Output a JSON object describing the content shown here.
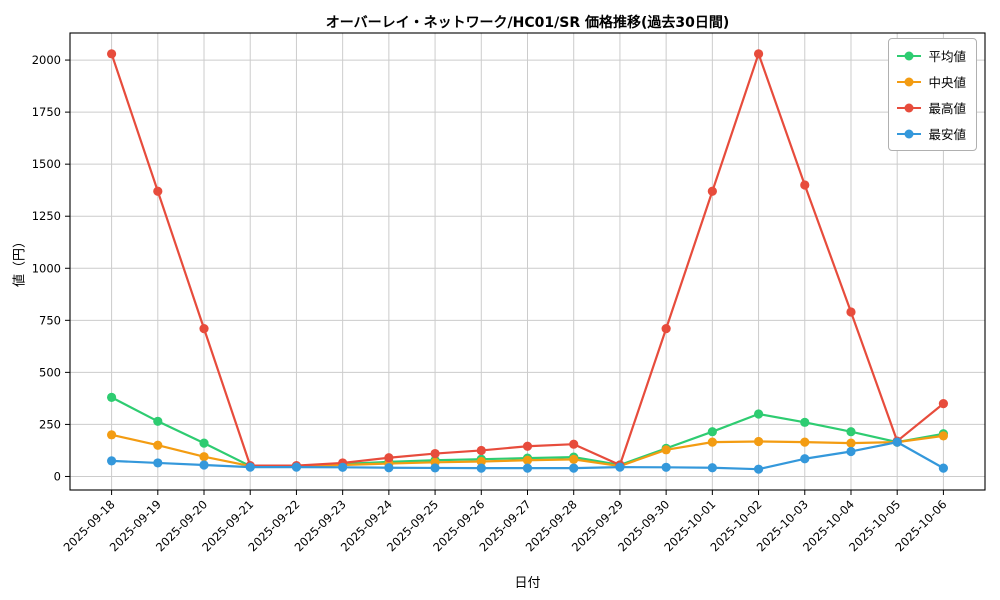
{
  "chart_data": {
    "type": "line",
    "title": "オーバーレイ・ネットワーク/HC01/SR 価格推移(過去30日間)",
    "xlabel": "日付",
    "ylabel": "値（円）",
    "grid": true,
    "legend_position": "upper right",
    "ylim": [
      -65,
      2130
    ],
    "yticks": [
      0,
      250,
      500,
      750,
      1000,
      1250,
      1500,
      1750,
      2000
    ],
    "x_margin": 0.9,
    "categories": [
      "2025-09-18",
      "2025-09-19",
      "2025-09-20",
      "2025-09-21",
      "2025-09-22",
      "2025-09-23",
      "2025-09-24",
      "2025-09-25",
      "2025-09-26",
      "2025-09-27",
      "2025-09-28",
      "2025-09-29",
      "2025-09-30",
      "2025-10-01",
      "2025-10-02",
      "2025-10-03",
      "2025-10-04",
      "2025-10-05",
      "2025-10-06"
    ],
    "series": [
      {
        "name": "平均値",
        "color": "#2ecc71",
        "values": [
          380,
          265,
          160,
          50,
          50,
          60,
          70,
          78,
          83,
          88,
          93,
          55,
          135,
          215,
          300,
          260,
          215,
          165,
          205
        ]
      },
      {
        "name": "中央値",
        "color": "#f39c12",
        "values": [
          200,
          150,
          95,
          50,
          48,
          55,
          62,
          68,
          72,
          78,
          82,
          50,
          128,
          165,
          168,
          165,
          160,
          165,
          195
        ]
      },
      {
        "name": "最高値",
        "color": "#e74c3c",
        "values": [
          2030,
          1370,
          710,
          52,
          52,
          65,
          90,
          110,
          125,
          145,
          155,
          55,
          710,
          1370,
          2030,
          1400,
          790,
          170,
          350
        ]
      },
      {
        "name": "最安値",
        "color": "#3498db",
        "values": [
          75,
          65,
          55,
          45,
          45,
          44,
          42,
          41,
          40,
          40,
          40,
          45,
          44,
          42,
          35,
          85,
          120,
          165,
          40
        ]
      }
    ]
  }
}
